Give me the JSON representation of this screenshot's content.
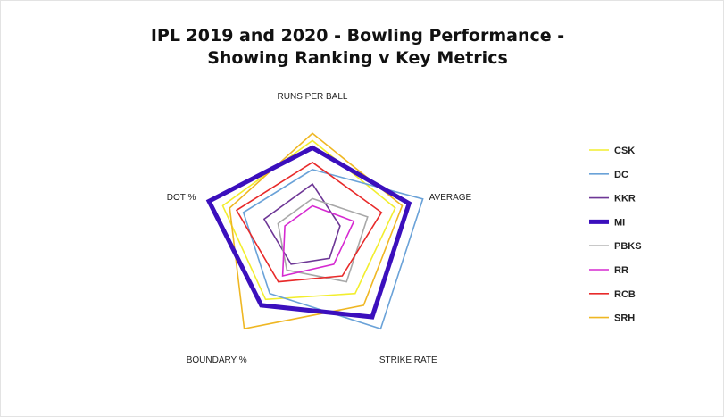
{
  "chart_data": {
    "type": "radar",
    "title_line1": "IPL 2019 and 2020 - Bowling Performance -",
    "title_line2": "Showing Ranking v Key Metrics",
    "axes": [
      "RUNS PER BALL",
      "AVERAGE",
      "STRIKE RATE",
      "BOUNDARY %",
      "DOT %"
    ],
    "max": 8,
    "grid": false,
    "legend_position": "right",
    "series": [
      {
        "name": "CSK",
        "color": "#f2ee2e",
        "highlight": false,
        "values": [
          6.5,
          6.0,
          5.0,
          5.5,
          6.5
        ]
      },
      {
        "name": "DC",
        "color": "#6aa2d8",
        "highlight": false,
        "values": [
          4.5,
          8.0,
          8.0,
          5.0,
          5.0
        ]
      },
      {
        "name": "KKR",
        "color": "#6e3796",
        "highlight": false,
        "values": [
          3.5,
          2.0,
          2.0,
          2.5,
          3.5
        ]
      },
      {
        "name": "MI",
        "color": "#3b0fbd",
        "highlight": true,
        "values": [
          6.0,
          7.0,
          7.0,
          6.0,
          7.5
        ]
      },
      {
        "name": "PBKS",
        "color": "#a8a8a8",
        "highlight": false,
        "values": [
          2.5,
          4.0,
          4.0,
          3.0,
          2.5
        ]
      },
      {
        "name": "RR",
        "color": "#d62ad1",
        "highlight": false,
        "values": [
          2.0,
          3.0,
          2.5,
          3.5,
          2.0
        ]
      },
      {
        "name": "RCB",
        "color": "#e82a2a",
        "highlight": false,
        "values": [
          5.0,
          5.0,
          3.5,
          4.0,
          5.5
        ]
      },
      {
        "name": "SRH",
        "color": "#efb723",
        "highlight": false,
        "values": [
          7.0,
          6.5,
          6.0,
          8.0,
          6.0
        ]
      }
    ]
  }
}
